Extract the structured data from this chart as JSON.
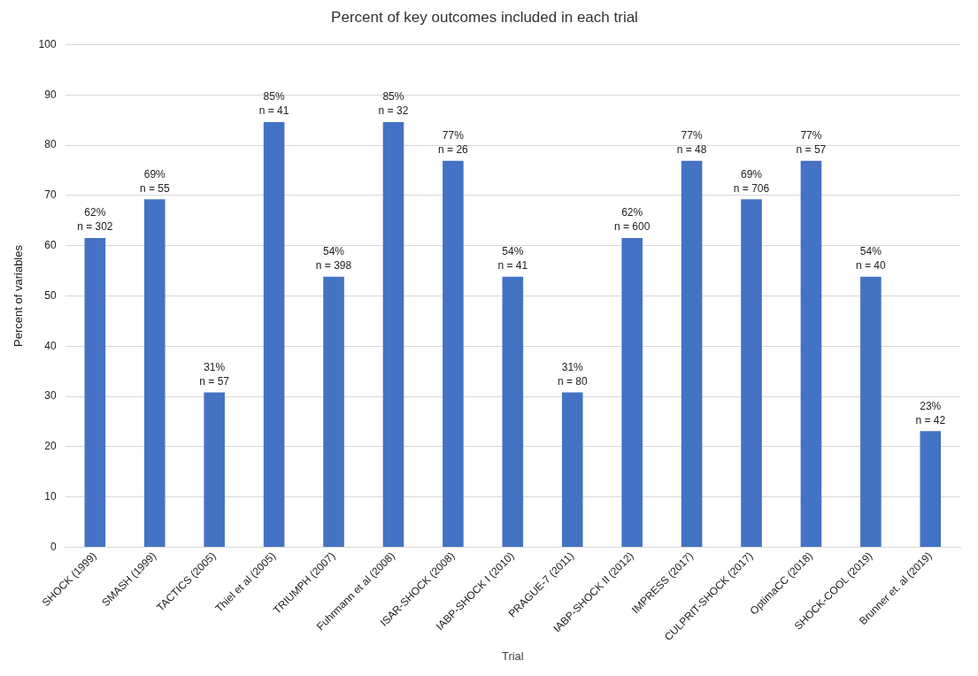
{
  "chart_data": {
    "type": "bar",
    "title": "Percent of key outcomes included in each trial",
    "xlabel": "Trial",
    "ylabel": "Percent of variables",
    "categories": [
      "SHOCK (1999)",
      "SMASH (1999)",
      "TACTICS (2005)",
      "Thiel et al (2005)",
      "TRIUMPH (2007)",
      "Fuhrmann et al (2008)",
      "ISAR-SHOCK (2008)",
      "IABP-SHOCK I (2010)",
      "PRAGUE-7 (2011)",
      "IABP-SHOCK II (2012)",
      "IMPRESS (2017)",
      "CULPRIT-SHOCK (2017)",
      "OptimaCC (2018)",
      "SHOCK-COOL (2019)",
      "Brunner et. al (2019)"
    ],
    "values": [
      61.5,
      69.2,
      30.8,
      84.6,
      53.8,
      84.6,
      76.9,
      53.8,
      30.8,
      61.5,
      76.9,
      69.2,
      76.9,
      53.8,
      23.1
    ],
    "value_labels": [
      "62%\nn = 302",
      "69%\nn = 55",
      "31%\nn = 57",
      "85%\nn = 41",
      "54%\nn = 398",
      "85%\nn = 32",
      "77%\nn = 26",
      "54%\nn = 41",
      "31%\nn = 80",
      "62%\nn = 600",
      "77%\nn = 48",
      "69%\nn = 706",
      "77%\nn = 57",
      "54%\nn = 40",
      "23%\nn = 42"
    ],
    "color": "#4472c4",
    "ylim": [
      0,
      100
    ],
    "yticks": [
      0,
      10,
      20,
      30,
      40,
      50,
      60,
      70,
      80,
      90,
      100
    ],
    "grid": "y"
  }
}
